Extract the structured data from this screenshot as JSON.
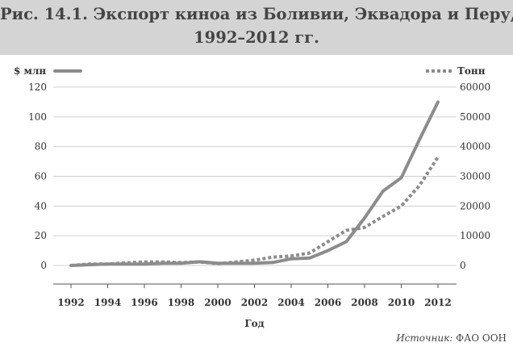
{
  "title": {
    "line1": "Рис. 14.1. Экспорт киноа из Боливии, Эквадора и Перу,",
    "line2": "1992–2012 гг."
  },
  "source": {
    "label": "Источник:",
    "value": "ФАО ООН"
  },
  "colors": {
    "title_band": "#d4d4d4",
    "series": "#8c8c8c",
    "grid": "#d0d0d0",
    "axis": "#555555"
  },
  "chart_data": {
    "type": "line",
    "xlabel": "Год",
    "x_ticks": [
      1992,
      1994,
      1996,
      1998,
      2000,
      2002,
      2004,
      2006,
      2008,
      2010,
      2012
    ],
    "y_left": {
      "unit": "$ млн",
      "range": [
        0,
        120
      ],
      "ticks": [
        0,
        20,
        40,
        60,
        80,
        100,
        120
      ]
    },
    "y_right": {
      "unit": "Тонн",
      "range": [
        0,
        60000
      ],
      "ticks": [
        0,
        10000,
        20000,
        30000,
        40000,
        50000,
        60000
      ]
    },
    "grid": true,
    "legend": "top",
    "series": [
      {
        "name": "$ млн",
        "axis": "left",
        "style": "solid",
        "x": [
          1992,
          1993,
          1994,
          1995,
          1996,
          1997,
          1998,
          1999,
          2000,
          2001,
          2002,
          2003,
          2004,
          2005,
          2006,
          2007,
          2008,
          2009,
          2010,
          2011,
          2012
        ],
        "values": [
          0,
          0.5,
          1,
          1,
          1,
          1.5,
          1.5,
          2.5,
          1.5,
          1.5,
          1.5,
          2,
          4.5,
          5,
          10,
          16,
          32,
          50,
          59,
          85,
          110
        ]
      },
      {
        "name": "Тонн",
        "axis": "right",
        "style": "dotted",
        "x": [
          1992,
          1993,
          1994,
          1995,
          1996,
          1997,
          1998,
          1999,
          2000,
          2001,
          2002,
          2003,
          2004,
          2005,
          2006,
          2007,
          2008,
          2009,
          2010,
          2011,
          2012
        ],
        "values": [
          0,
          500,
          500,
          900,
          1200,
          1200,
          1000,
          1200,
          600,
          1200,
          1800,
          2800,
          3200,
          4200,
          8000,
          11800,
          12800,
          16500,
          20000,
          27000,
          36500
        ]
      }
    ]
  }
}
